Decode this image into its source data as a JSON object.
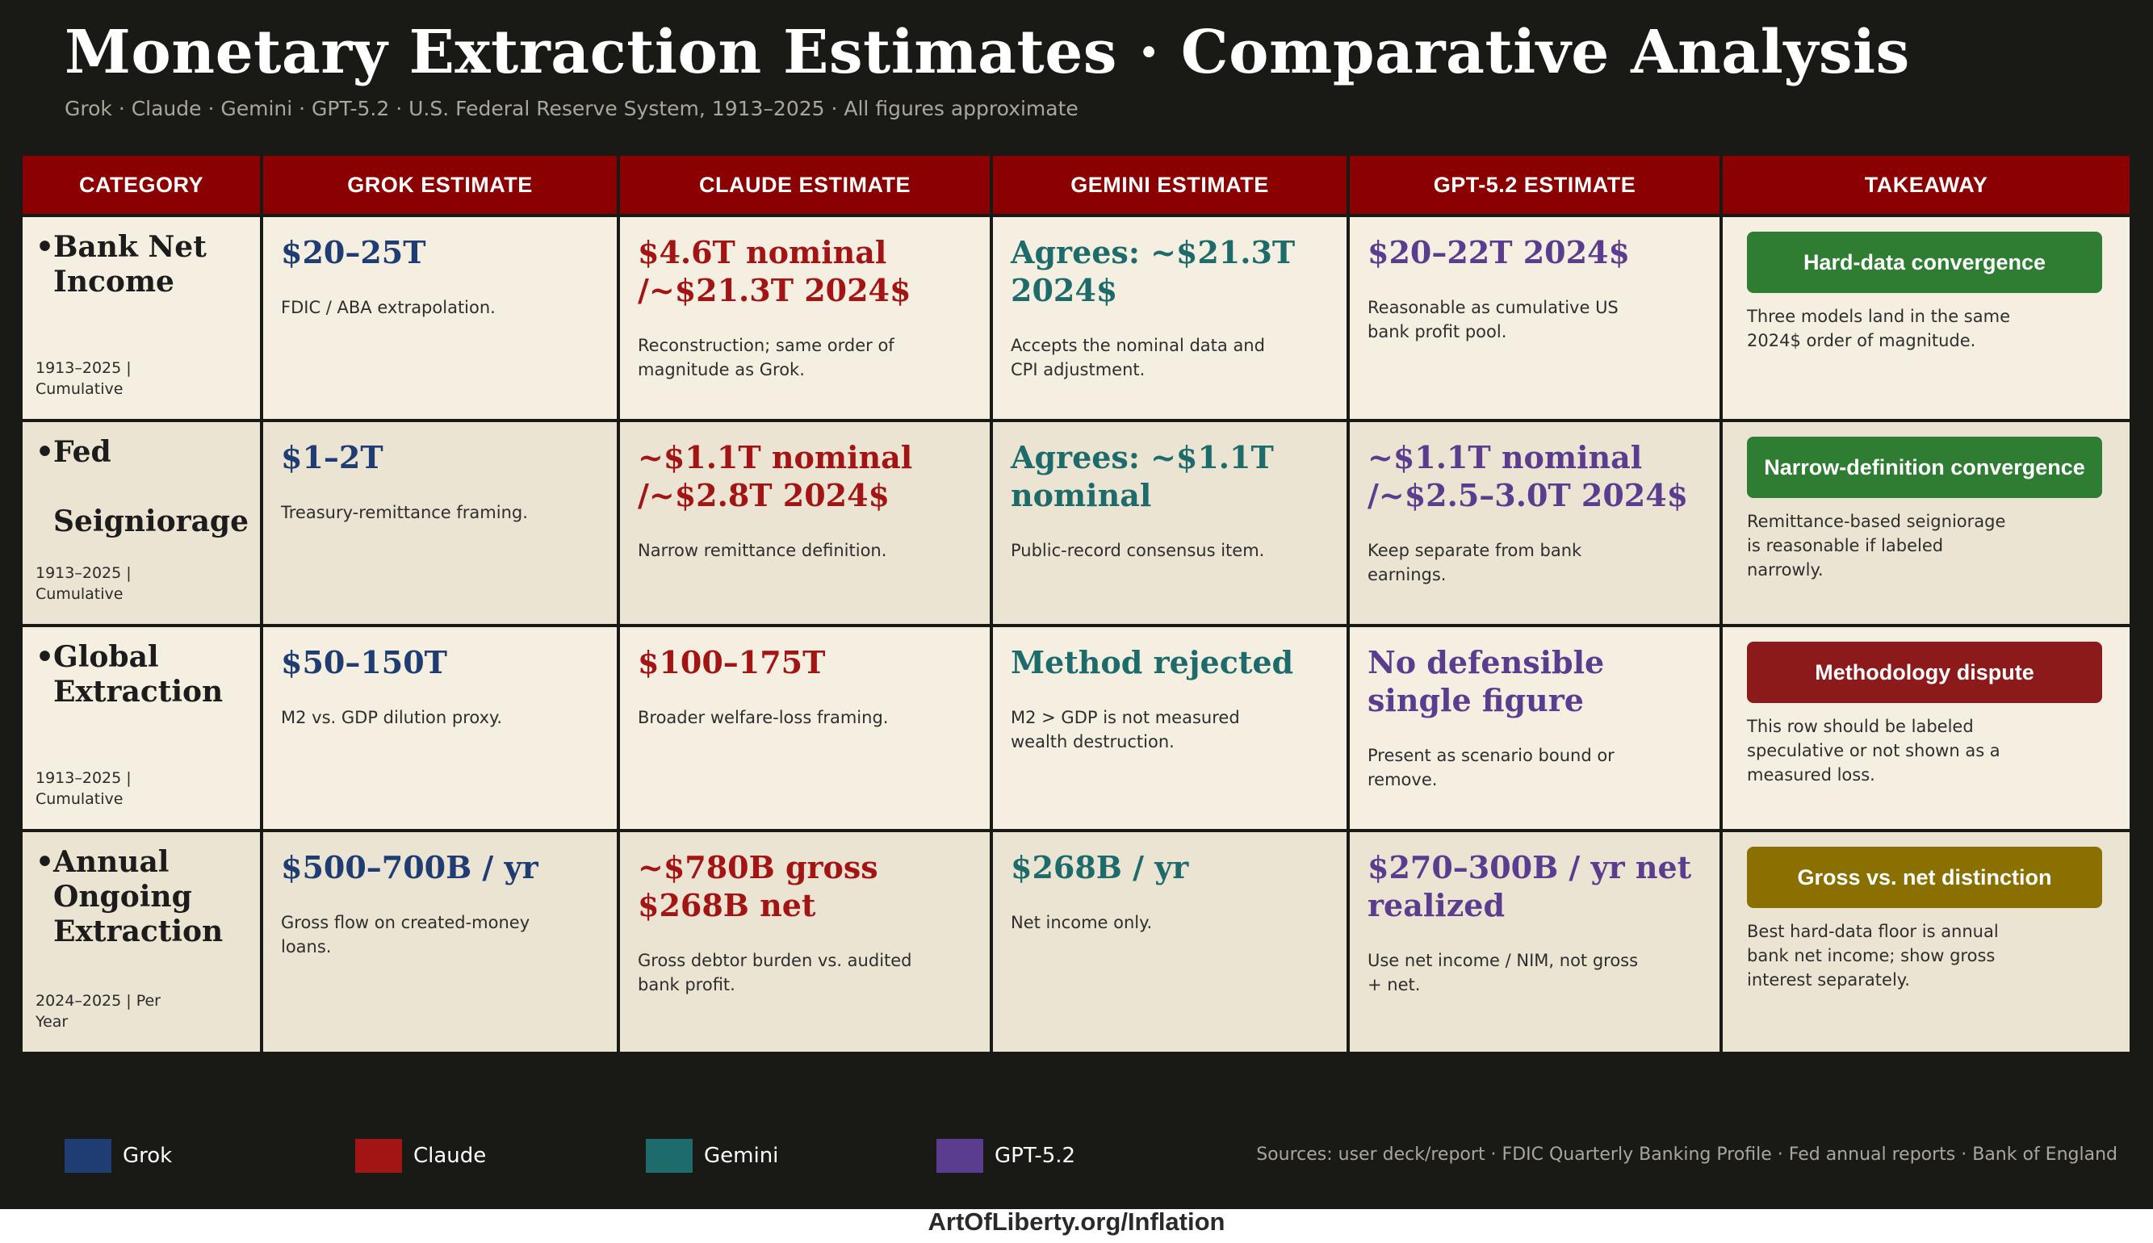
{
  "header": {
    "title": "Monetary Extraction Estimates  ·  Comparative Analysis",
    "subtitle": "Grok · Claude · Gemini · GPT-5.2 · U.S. Federal Reserve System, 1913–2025 · All figures approximate"
  },
  "columns": [
    "CATEGORY",
    "GROK ESTIMATE",
    "CLAUDE ESTIMATE",
    "GEMINI ESTIMATE",
    "GPT-5.2 ESTIMATE",
    "TAKEAWAY"
  ],
  "rows": [
    {
      "category": "Bank Net\nIncome",
      "range": "1913–2025 | Cumulative",
      "grok": {
        "value": "$20–25T",
        "note": "FDIC / ABA extrapolation."
      },
      "claude": {
        "value": "$4.6T nominal /~$21.3T 2024$",
        "note": "Reconstruction; same order of magnitude as Grok."
      },
      "gemini": {
        "value": "Agrees: ~$21.3T 2024$",
        "note": "Accepts the nominal data and CPI adjustment."
      },
      "gpt": {
        "value": "$20–22T 2024$",
        "note": "Reasonable as cumulative US bank profit pool."
      },
      "takeaway": {
        "badge": "Hard-data convergence",
        "note": "Three models land in the same 2024$ order of magnitude."
      }
    },
    {
      "category": "Fed\n\nSeigniorage",
      "range": "1913–2025 | Cumulative",
      "grok": {
        "value": "$1–2T",
        "note": "Treasury-remittance framing."
      },
      "claude": {
        "value": "~$1.1T nominal /~$2.8T 2024$",
        "note": "Narrow remittance definition."
      },
      "gemini": {
        "value": "Agrees: ~$1.1T nominal",
        "note": "Public-record consensus item."
      },
      "gpt": {
        "value": "~$1.1T nominal /~$2.5–3.0T 2024$",
        "note": "Keep separate from bank earnings."
      },
      "takeaway": {
        "badge": "Narrow-definition convergence",
        "note": "Remittance-based seigniorage is reasonable if labeled narrowly."
      }
    },
    {
      "category": "Global\nExtraction",
      "range": "1913–2025 | Cumulative",
      "grok": {
        "value": "$50–150T",
        "note": "M2 vs. GDP dilution proxy."
      },
      "claude": {
        "value": "$100–175T",
        "note": "Broader welfare-loss framing."
      },
      "gemini": {
        "value": "Method rejected",
        "note": "M2 > GDP is not measured wealth destruction."
      },
      "gpt": {
        "value": "No defensible single figure",
        "note": "Present as scenario bound or remove."
      },
      "takeaway": {
        "badge": "Methodology  dispute",
        "note": "This row should be labeled speculative or not shown as a measured loss."
      }
    },
    {
      "category": "Annual\nOngoing\nExtraction",
      "range": "2024–2025 | Per Year",
      "grok": {
        "value": "$500–700B / yr",
        "note": "Gross flow on created-money loans."
      },
      "claude": {
        "value": "~$780B gross $268B net",
        "note": "Gross debtor burden vs. audited bank profit."
      },
      "gemini": {
        "value": "$268B / yr",
        "note": "Net income only."
      },
      "gpt": {
        "value": "$270–300B / yr net realized",
        "note": "Use net income / NIM, not gross + net."
      },
      "takeaway": {
        "badge": "Gross vs. net distinction",
        "note": "Best hard-data floor is annual bank net income; show gross interest separately."
      }
    }
  ],
  "legend": [
    {
      "label": "Grok",
      "color": "#1f3d73"
    },
    {
      "label": "Claude",
      "color": "#a31515"
    },
    {
      "label": "Gemini",
      "color": "#1e6b6b"
    },
    {
      "label": "GPT-5.2",
      "color": "#5b3d8f"
    }
  ],
  "sources": "Sources: user deck/report · FDIC Quarterly Banking Profile · Fed annual reports · Bank of England",
  "footer": "ArtOfLiberty.org/Inflation"
}
